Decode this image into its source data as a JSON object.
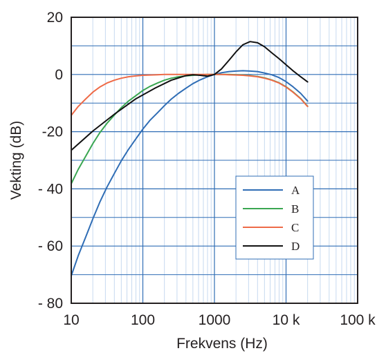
{
  "chart_data": {
    "type": "line",
    "xlabel": "Frekvens (Hz)",
    "ylabel": "Vekting (dB)",
    "x_scale": "log",
    "xlim": [
      10,
      100000
    ],
    "ylim": [
      -80,
      20
    ],
    "x_ticks": [
      10,
      100,
      1000,
      10000,
      100000
    ],
    "x_tick_labels": [
      "10",
      "100",
      "1000",
      "10 k",
      "100 k"
    ],
    "y_ticks": [
      20,
      0,
      -20,
      -40,
      -60,
      -80
    ],
    "y_tick_labels": [
      "20",
      "0",
      "-20",
      "- 40",
      "- 60",
      "- 80"
    ],
    "grid": true,
    "legend_position": "bottom-right",
    "series": [
      {
        "name": "A",
        "color": "#2f6db5",
        "x": [
          10,
          12.5,
          16,
          20,
          25,
          31.5,
          40,
          50,
          63,
          80,
          100,
          125,
          160,
          200,
          250,
          315,
          400,
          500,
          630,
          800,
          1000,
          1250,
          1600,
          2000,
          2500,
          3150,
          4000,
          5000,
          6300,
          8000,
          10000,
          12500,
          16000,
          20000
        ],
        "values": [
          -70.4,
          -63.4,
          -56.7,
          -50.5,
          -44.7,
          -39.4,
          -34.6,
          -30.2,
          -26.2,
          -22.5,
          -19.1,
          -16.1,
          -13.4,
          -10.9,
          -8.6,
          -6.6,
          -4.8,
          -3.2,
          -1.9,
          -0.8,
          0.0,
          0.6,
          1.0,
          1.2,
          1.3,
          1.2,
          1.0,
          0.5,
          -0.1,
          -1.1,
          -2.5,
          -4.3,
          -6.6,
          -9.3
        ]
      },
      {
        "name": "B",
        "color": "#3aa651",
        "x": [
          10,
          12.5,
          16,
          20,
          25,
          31.5,
          40,
          50,
          63,
          80,
          100,
          125,
          160,
          200,
          250,
          315,
          400,
          500,
          630,
          800,
          1000,
          1250,
          1600,
          2000,
          2500,
          3150,
          4000,
          5000,
          6300,
          8000,
          10000,
          12500,
          16000,
          20000
        ],
        "values": [
          -38.2,
          -33.2,
          -28.5,
          -24.2,
          -20.4,
          -17.1,
          -14.2,
          -11.6,
          -9.3,
          -7.4,
          -5.6,
          -4.2,
          -3.0,
          -2.0,
          -1.3,
          -0.8,
          -0.5,
          -0.3,
          -0.1,
          0.0,
          0.0,
          0.0,
          0.0,
          -0.1,
          -0.2,
          -0.4,
          -0.7,
          -1.2,
          -1.9,
          -2.9,
          -4.3,
          -6.1,
          -8.4,
          -11.1
        ]
      },
      {
        "name": "C",
        "color": "#ee6a47",
        "x": [
          10,
          12.5,
          16,
          20,
          25,
          31.5,
          40,
          50,
          63,
          80,
          100,
          125,
          160,
          200,
          250,
          315,
          400,
          500,
          630,
          800,
          1000,
          1250,
          1600,
          2000,
          2500,
          3150,
          4000,
          5000,
          6300,
          8000,
          10000,
          12500,
          16000,
          20000
        ],
        "values": [
          -14.3,
          -11.2,
          -8.5,
          -6.2,
          -4.4,
          -3.0,
          -2.0,
          -1.3,
          -0.8,
          -0.5,
          -0.3,
          -0.2,
          -0.1,
          0.0,
          0.0,
          0.0,
          0.0,
          0.0,
          0.0,
          0.0,
          0.0,
          0.0,
          -0.1,
          -0.2,
          -0.3,
          -0.5,
          -0.8,
          -1.3,
          -2.0,
          -3.0,
          -4.4,
          -6.2,
          -8.5,
          -11.2
        ]
      },
      {
        "name": "D",
        "color": "#111111",
        "x": [
          10,
          20,
          40,
          80,
          150,
          250,
          400,
          500,
          630,
          800,
          1000,
          1250,
          1600,
          2000,
          2500,
          3150,
          4000,
          5000,
          6300,
          8000,
          10000,
          12500,
          16000,
          20000
        ],
        "values": [
          -26.5,
          -19.8,
          -13.9,
          -8.5,
          -4.7,
          -2.0,
          -0.4,
          -0.1,
          -0.3,
          -0.6,
          0.0,
          1.9,
          5.0,
          7.9,
          10.4,
          11.5,
          11.1,
          9.7,
          7.6,
          5.5,
          3.4,
          1.3,
          -0.8,
          -2.6
        ]
      }
    ]
  }
}
